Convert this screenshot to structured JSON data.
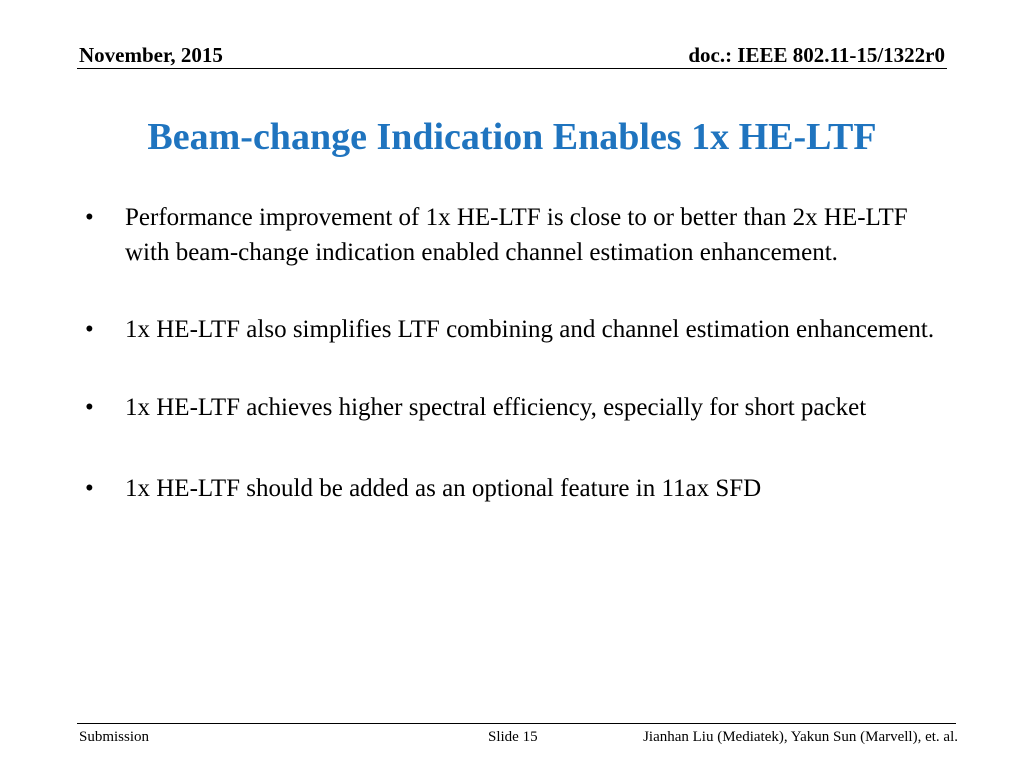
{
  "header": {
    "date": "November, 2015",
    "doc_id": "doc.: IEEE 802.11-15/1322r0"
  },
  "title": "Beam-change Indication Enables 1x HE-LTF",
  "bullet_symbol": "•",
  "bullets": [
    "Performance improvement of 1x HE-LTF is close to or better than 2x HE-LTF with beam-change indication enabled channel estimation enhancement.",
    "1x HE-LTF also simplifies LTF combining and channel estimation enhancement.",
    "1x HE-LTF achieves higher spectral efficiency, especially for short packet",
    "1x HE-LTF should be added as an optional feature in 11ax SFD"
  ],
  "footer": {
    "left": "Submission",
    "center": "Slide 15",
    "right": "Jianhan Liu (Mediatek), Yakun Sun (Marvell),  et. al."
  },
  "colors": {
    "title": "#1f74bf",
    "text": "#000000",
    "rule": "#000000"
  }
}
